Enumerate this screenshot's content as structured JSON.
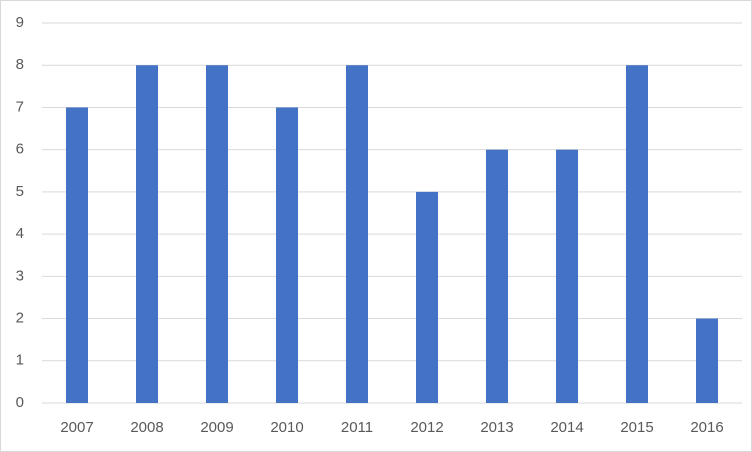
{
  "chart_data": {
    "type": "bar",
    "categories": [
      "2007",
      "2008",
      "2009",
      "2010",
      "2011",
      "2012",
      "2013",
      "2014",
      "2015",
      "2016"
    ],
    "values": [
      7,
      8,
      8,
      7,
      8,
      5,
      6,
      6,
      8,
      2
    ],
    "color": "#4472c4",
    "ylim": [
      0,
      9
    ],
    "yticks": [
      0,
      1,
      2,
      3,
      4,
      5,
      6,
      7,
      8,
      9
    ],
    "grid": true
  }
}
